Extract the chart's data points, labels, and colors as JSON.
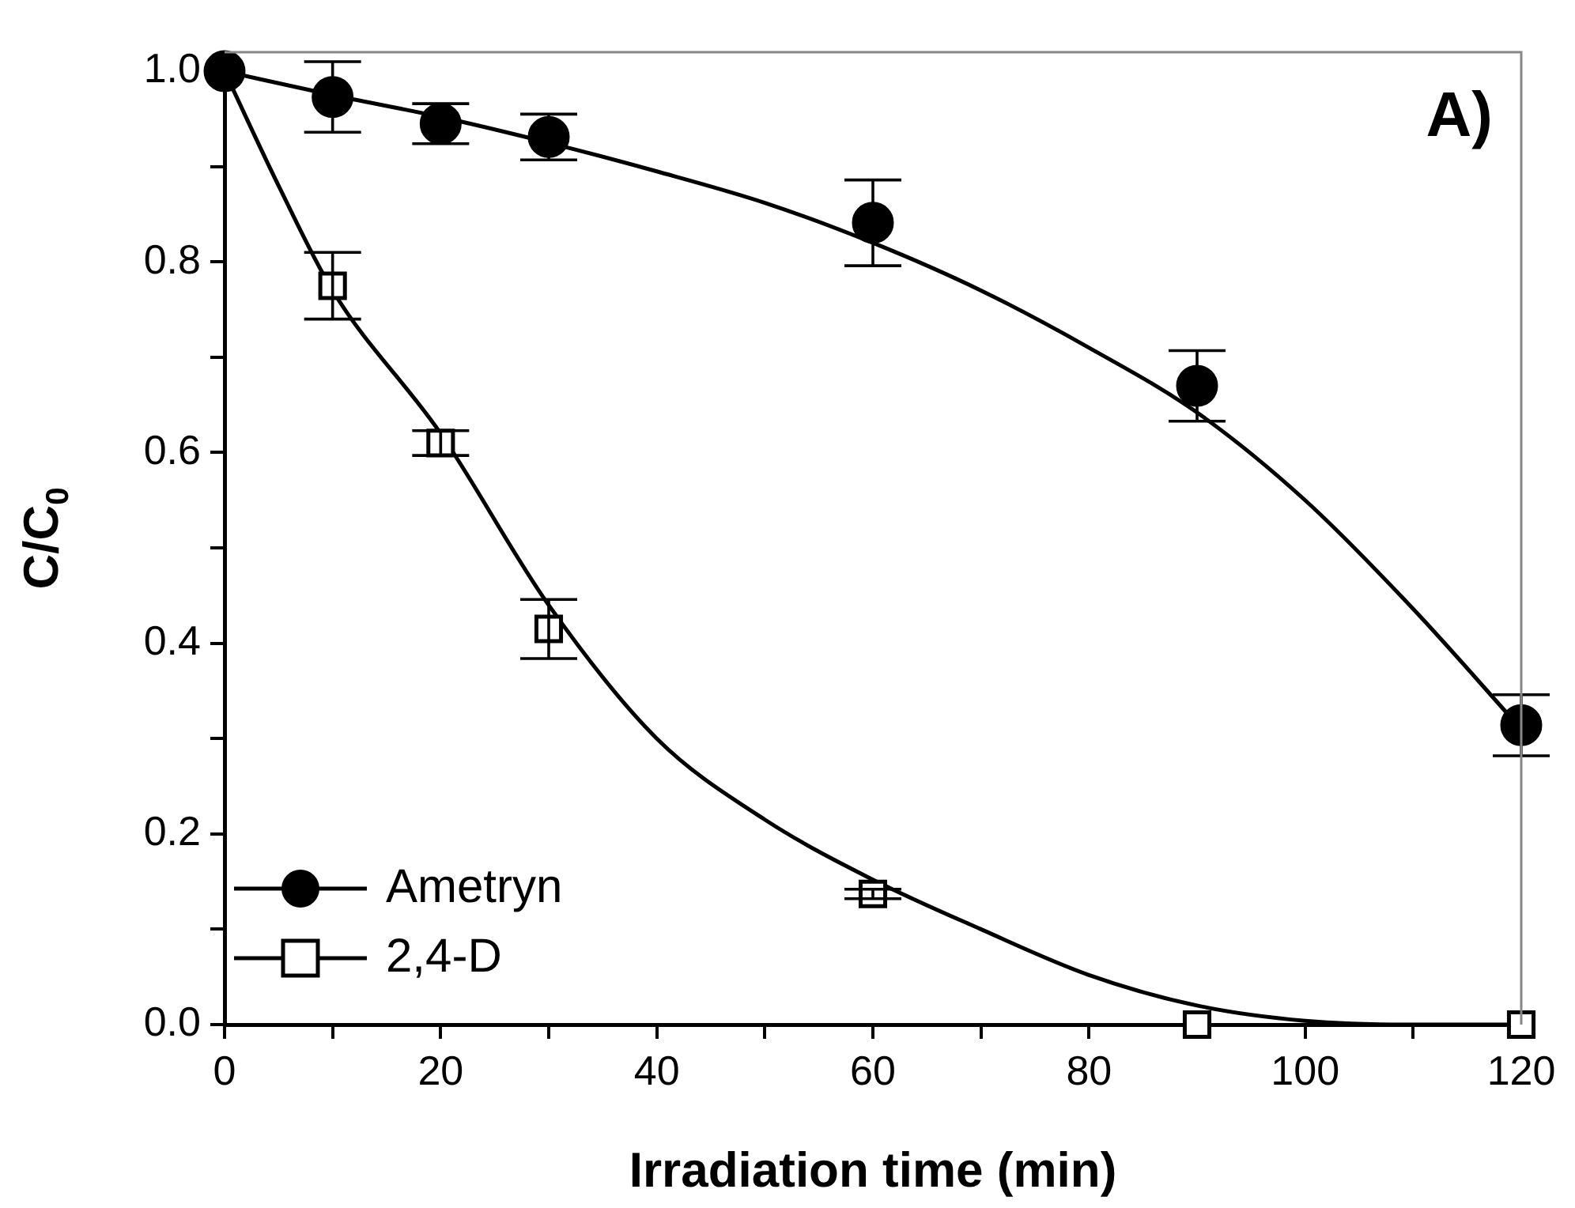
{
  "chart_data": {
    "type": "scatter",
    "xlabel": "Irradiation time (min)",
    "ylabel": "C/C$_{0}$",
    "annotations": [
      "A)"
    ],
    "xlim": [
      0,
      120
    ],
    "xticks": [
      0,
      {
        "value": 10,
        "label": null
      },
      20,
      {
        "value": 30,
        "label": null
      },
      40,
      {
        "value": 50,
        "label": null
      },
      60,
      {
        "value": 70,
        "label": null
      },
      80,
      {
        "value": 90,
        "label": null
      },
      100,
      {
        "value": 110,
        "label": null
      },
      120
    ],
    "ylim": [
      0,
      1.02
    ],
    "yticks": [
      {
        "value": 0,
        "label": "0.0"
      },
      {
        "value": 0.1,
        "label": null
      },
      0.2,
      {
        "value": 0.3,
        "label": null
      },
      0.4,
      {
        "value": 0.5,
        "label": null
      },
      0.6,
      {
        "value": 0.7,
        "label": null
      },
      0.8,
      {
        "value": 0.9,
        "label": null
      },
      {
        "value": 1,
        "label": "1.0"
      }
    ],
    "grid": false,
    "legend": "bottom left",
    "series": [
      {
        "name": "Ametryn",
        "type": "scatter",
        "marker": "circle",
        "color": "#000000",
        "x": [
          0,
          10,
          20,
          30,
          60,
          90,
          120
        ],
        "values": [
          1.0,
          0.973,
          0.945,
          0.931,
          0.841,
          0.67,
          0.314
        ],
        "errors": [
          null,
          0.037,
          0.021,
          0.024,
          0.045,
          0.037,
          0.032
        ]
      },
      {
        "name": "2,4-D",
        "type": "scatter",
        "marker": "square",
        "color": "#000000",
        "x": [
          10,
          20,
          30,
          60,
          90,
          120
        ],
        "values": [
          0.775,
          0.61,
          0.415,
          0.137,
          0.0,
          0.0
        ],
        "errors": [
          0.035,
          0.013,
          0.031,
          0.005,
          null,
          null
        ]
      },
      {
        "type": "line",
        "marker": "none",
        "color": "#000000",
        "x": [
          0,
          10,
          20,
          30,
          40,
          50,
          60,
          70,
          80,
          90,
          100,
          110,
          120
        ],
        "values": [
          1.0,
          0.975,
          0.952,
          0.925,
          0.895,
          0.862,
          0.82,
          0.77,
          0.71,
          0.642,
          0.55,
          0.436,
          0.31
        ]
      },
      {
        "type": "line",
        "marker": "none",
        "color": "#000000",
        "x": [
          0,
          5,
          10,
          20,
          30,
          40,
          50,
          60,
          70,
          80,
          90,
          100,
          110,
          120
        ],
        "values": [
          1.0,
          0.88,
          0.77,
          0.62,
          0.44,
          0.3,
          0.215,
          0.152,
          0.1,
          0.052,
          0.02,
          0.004,
          0.0,
          0.0
        ]
      }
    ]
  }
}
